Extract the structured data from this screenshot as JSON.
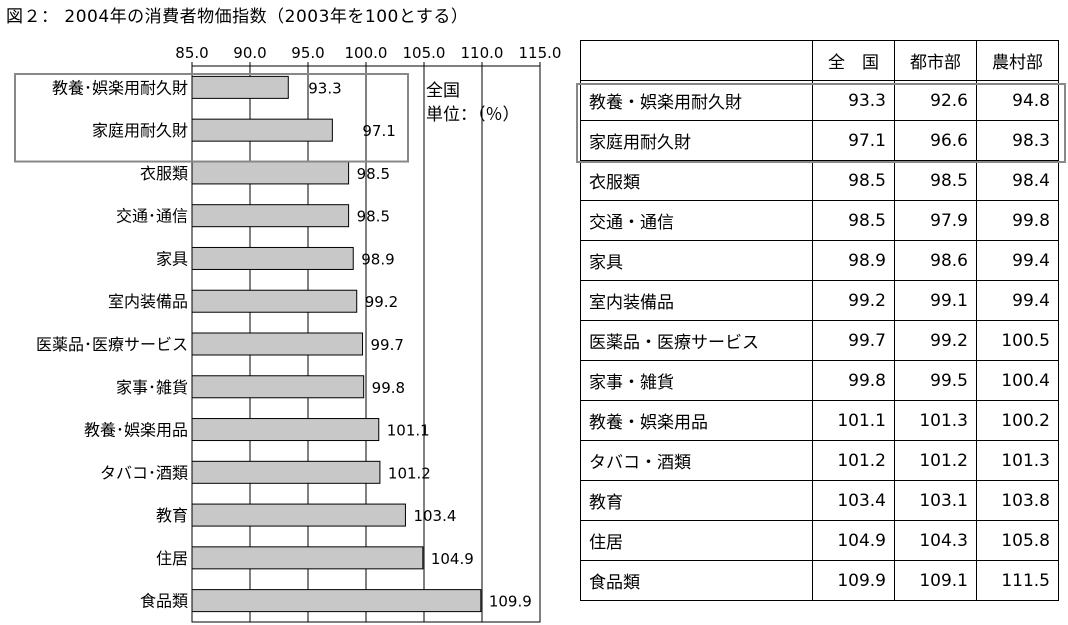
{
  "title": "図２： 2004年の消費者物価指数（2003年を100とする）",
  "chart_data": {
    "type": "bar",
    "orientation": "horizontal",
    "categories": [
      "教養･娯楽用耐久財",
      "家庭用耐久財",
      "衣服類",
      "交通･通信",
      "家具",
      "室内装備品",
      "医薬品･医療サービス",
      "家事･雑貨",
      "教養･娯楽用品",
      "タバコ･酒類",
      "教育",
      "住居",
      "食品類"
    ],
    "values": [
      93.3,
      97.1,
      98.5,
      98.5,
      98.9,
      99.2,
      99.7,
      99.8,
      101.1,
      101.2,
      103.4,
      104.9,
      109.9
    ],
    "value_labels": [
      "93.3",
      "97.1",
      "98.5",
      "98.5",
      "98.9",
      "99.2",
      "99.7",
      "99.8",
      "101.1",
      "101.2",
      "103.4",
      "104.9",
      "109.9"
    ],
    "xlim": [
      85.0,
      115.0
    ],
    "x_ticks": [
      "85.0",
      "90.0",
      "95.0",
      "100.0",
      "105.0",
      "110.0",
      "115.0"
    ],
    "axis_position": "top",
    "grid": true,
    "bar_color": "#c8c8c8",
    "highlight_color": "#888888",
    "highlighted_categories": [
      "教養･娯楽用耐久財",
      "家庭用耐久財"
    ],
    "annotation": [
      "全国",
      "単位：（％）"
    ]
  },
  "table": {
    "headers": [
      "",
      "全　国",
      "都市部",
      "農村部"
    ],
    "rows": [
      {
        "label": "教養・娯楽用耐久財",
        "national": "93.3",
        "urban": "92.6",
        "rural": "94.8"
      },
      {
        "label": "家庭用耐久財",
        "national": "97.1",
        "urban": "96.6",
        "rural": "98.3"
      },
      {
        "label": "衣服類",
        "national": "98.5",
        "urban": "98.5",
        "rural": "98.4"
      },
      {
        "label": "交通・通信",
        "national": "98.5",
        "urban": "97.9",
        "rural": "99.8"
      },
      {
        "label": "家具",
        "national": "98.9",
        "urban": "98.6",
        "rural": "99.4"
      },
      {
        "label": "室内装備品",
        "national": "99.2",
        "urban": "99.1",
        "rural": "99.4"
      },
      {
        "label": "医薬品・医療サービス",
        "national": "99.7",
        "urban": "99.2",
        "rural": "100.5"
      },
      {
        "label": "家事・雑貨",
        "national": "99.8",
        "urban": "99.5",
        "rural": "100.4"
      },
      {
        "label": "教養・娯楽用品",
        "national": "101.1",
        "urban": "101.3",
        "rural": "100.2"
      },
      {
        "label": "タバコ・酒類",
        "national": "101.2",
        "urban": "101.2",
        "rural": "101.3"
      },
      {
        "label": "教育",
        "national": "103.4",
        "urban": "103.1",
        "rural": "103.8"
      },
      {
        "label": "住居",
        "national": "104.9",
        "urban": "104.3",
        "rural": "105.8"
      },
      {
        "label": "食品類",
        "national": "109.9",
        "urban": "109.1",
        "rural": "111.5"
      }
    ]
  }
}
